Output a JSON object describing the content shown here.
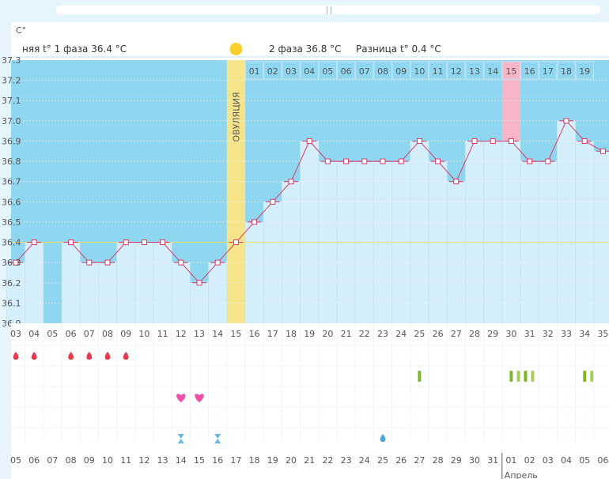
{
  "ui": {
    "unit_label": "C°",
    "phase1_text": "няя t° 1 фаза 36.4 °C",
    "phase2_text": "2 фаза 36.8 °C",
    "diff_text": "Разница t° 0.4 °C",
    "ovulation_label": "ОВУЛЯЦИЯ",
    "month_label": "Апрель",
    "colors": {
      "sky": "#8fd6f1",
      "bar": "#d4eefb",
      "line": "#d63b64",
      "ovulation": "#f6e48a",
      "highlight": "#f7b6c8",
      "weekend": "#e2245a",
      "sun": "#f9cf2e"
    }
  },
  "chart_data": {
    "type": "line",
    "ylabel": "C°",
    "ylim": [
      36.0,
      37.3
    ],
    "yticks": [
      "36.0",
      "36.1",
      "36.2",
      "36.3",
      "36.4",
      "36.5",
      "36.6",
      "36.7",
      "36.8",
      "36.9",
      "37.0",
      "37.1",
      "37.2",
      "37.3"
    ],
    "baseline": 36.4,
    "cycle_days": [
      "03",
      "04",
      "05",
      "06",
      "07",
      "08",
      "09",
      "10",
      "11",
      "12",
      "13",
      "14",
      "15",
      "16",
      "17",
      "18",
      "19",
      "20",
      "21",
      "22",
      "23",
      "24",
      "25",
      "26",
      "27",
      "28",
      "29",
      "30",
      "31",
      "32",
      "33",
      "34",
      "35"
    ],
    "phase2_days": [
      "01",
      "02",
      "03",
      "04",
      "05",
      "06",
      "07",
      "08",
      "09",
      "10",
      "11",
      "12",
      "13",
      "14",
      "15",
      "16",
      "17",
      "18",
      "19"
    ],
    "ovulation_day": "15",
    "highlight_phase2_day": "15",
    "temperatures": [
      36.3,
      36.4,
      null,
      36.4,
      36.3,
      36.3,
      36.4,
      36.4,
      36.4,
      36.3,
      36.2,
      36.3,
      36.4,
      36.5,
      36.6,
      36.7,
      36.9,
      36.8,
      36.8,
      36.8,
      36.8,
      36.8,
      36.9,
      36.8,
      36.7,
      36.9,
      36.9,
      36.9,
      36.8,
      36.8,
      37.0,
      36.9,
      36.85
    ],
    "dates": [
      "05",
      "06",
      "07",
      "08",
      "09",
      "10",
      "11",
      "12",
      "13",
      "14",
      "15",
      "16",
      "17",
      "18",
      "19",
      "20",
      "21",
      "22",
      "23",
      "24",
      "25",
      "26",
      "27",
      "28",
      "29",
      "30",
      "31",
      "01",
      "02",
      "03",
      "04",
      "05",
      "06"
    ],
    "weekend_dates": [
      2,
      3,
      10,
      11,
      16,
      17,
      23,
      24,
      30,
      31
    ],
    "markers": {
      "drops": [
        0,
        1,
        3,
        4,
        5,
        6
      ],
      "pills": [
        {
          "i": 22,
          "n": 1
        },
        {
          "i": 27,
          "n": 4
        },
        {
          "i": 31,
          "n": 2
        }
      ],
      "hearts": [
        9,
        10
      ],
      "hourglass": [
        9,
        11
      ],
      "blue_drop": [
        20
      ]
    }
  }
}
